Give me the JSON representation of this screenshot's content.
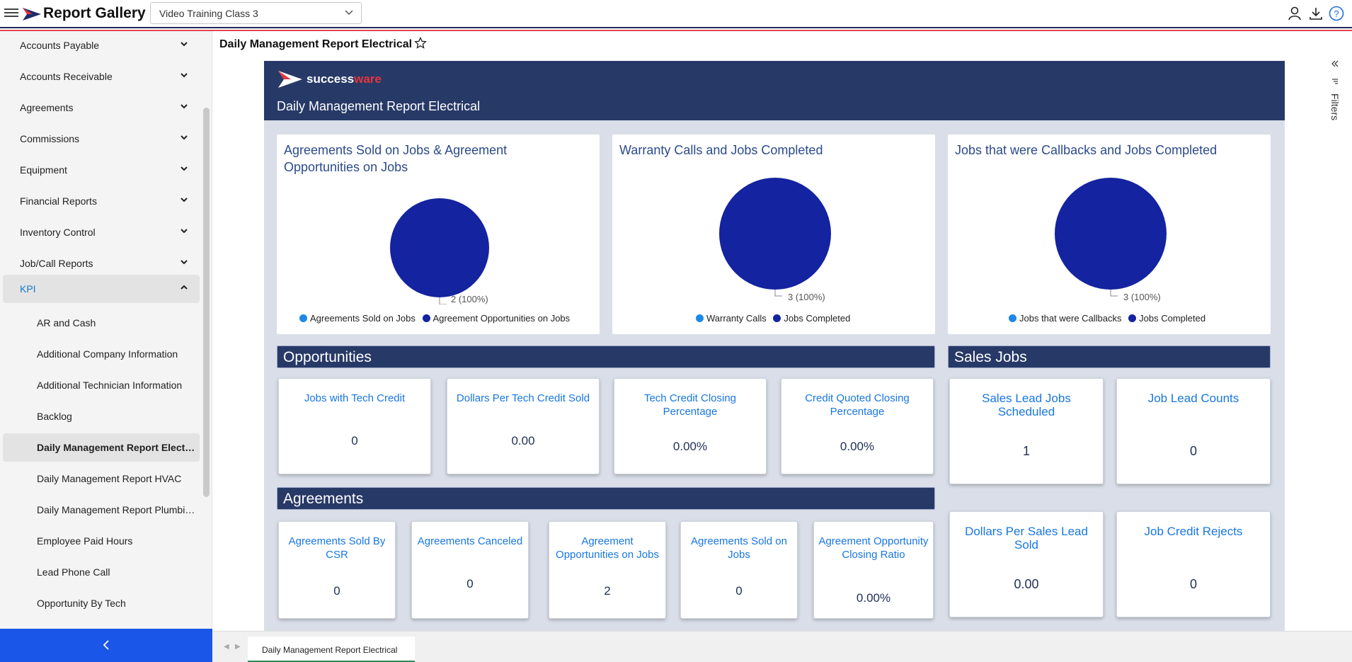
{
  "app": {
    "title": "Report Gallery"
  },
  "workspace": {
    "selected": "Video Training Class 3"
  },
  "sidebar": {
    "groups": [
      {
        "label": "Accounts Payable"
      },
      {
        "label": "Accounts Receivable"
      },
      {
        "label": "Agreements"
      },
      {
        "label": "Commissions"
      },
      {
        "label": "Equipment"
      },
      {
        "label": "Financial Reports"
      },
      {
        "label": "Inventory Control"
      },
      {
        "label": "Job/Call Reports"
      },
      {
        "label": "KPI"
      }
    ],
    "kpi_items": [
      {
        "label": "AR and Cash"
      },
      {
        "label": "Additional Company Information"
      },
      {
        "label": "Additional Technician Information"
      },
      {
        "label": "Backlog"
      },
      {
        "label": "Daily Management Report Electrical"
      },
      {
        "label": "Daily Management Report HVAC"
      },
      {
        "label": "Daily Management Report Plumbing"
      },
      {
        "label": "Employee Paid Hours"
      },
      {
        "label": "Lead Phone Call"
      },
      {
        "label": "Opportunity By Tech"
      }
    ],
    "collapse_label": "<"
  },
  "report": {
    "title": "Daily Management Report Electrical",
    "filters_label": "Filters",
    "brand_success": "success",
    "brand_ware": "ware",
    "header_subtitle": "Daily Management Report Electrical"
  },
  "colors": {
    "navy": "#273966",
    "pie": "#14239f",
    "legend_light": "#1e88e5",
    "legend_dark": "#14239f",
    "kpi_title": "#1877e0"
  },
  "chart_data": [
    {
      "type": "pie",
      "title": "Agreements Sold on Jobs & Agreement Opportunities on Jobs",
      "legend": [
        "Agreements Sold on Jobs",
        "Agreement Opportunities on Jobs"
      ],
      "values": [
        0,
        2
      ],
      "data_label": "2 (100%)"
    },
    {
      "type": "pie",
      "title": "Warranty Calls and Jobs Completed",
      "legend": [
        "Warranty Calls",
        "Jobs Completed"
      ],
      "values": [
        0,
        3
      ],
      "data_label": "3 (100%)"
    },
    {
      "type": "pie",
      "title": "Jobs that were Callbacks and Jobs Completed",
      "legend": [
        "Jobs that were Callbacks",
        "Jobs Completed"
      ],
      "values": [
        0,
        3
      ],
      "data_label": "3 (100%)"
    }
  ],
  "sections": {
    "opportunities": "Opportunities",
    "sales_jobs": "Sales Jobs",
    "agreements": "Agreements"
  },
  "opportunities": [
    {
      "title": "Jobs with Tech Credit",
      "value": "0"
    },
    {
      "title": "Dollars Per Tech Credit Sold",
      "value": "0.00"
    },
    {
      "title": "Tech Credit Closing Percentage",
      "value": "0.00%"
    },
    {
      "title": "Credit Quoted Closing Percentage",
      "value": "0.00%"
    }
  ],
  "sales_jobs": [
    {
      "title": "Sales Lead Jobs Scheduled",
      "value": "1"
    },
    {
      "title": "Job Lead Counts",
      "value": "0"
    },
    {
      "title": "Dollars Per Sales Lead Sold",
      "value": "0.00"
    },
    {
      "title": "Job Credit Rejects",
      "value": "0"
    }
  ],
  "agreements": [
    {
      "title": "Agreements Sold By CSR",
      "value": "0"
    },
    {
      "title": "Agreements Canceled",
      "value": "0"
    },
    {
      "title": "Agreement Opportunities on Jobs",
      "value": "2"
    },
    {
      "title": "Agreements Sold on Jobs",
      "value": "0"
    },
    {
      "title": "Agreement Opportunity Closing Ratio",
      "value": "0.00%"
    }
  ],
  "bottom": {
    "tab_label": "Daily Management Report Electrical"
  }
}
